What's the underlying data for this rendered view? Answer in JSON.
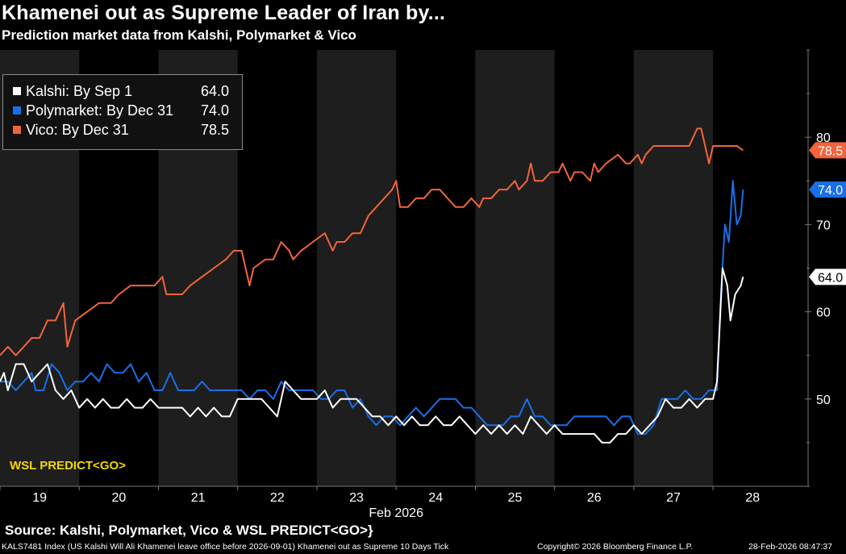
{
  "title": "Khamenei out as Supreme Leader of Iran by...",
  "subtitle": "Prediction market data from Kalshi, Polymarket & Vico",
  "source": "Source: Kalshi, Polymarket, Vico & WSL PREDICT<GO>}",
  "footer": {
    "left": "KALS7481 Index (US Kalshi Will Ali Khamenei leave office before 2026-09-01) Khamenei out as Supreme 10 Days Tick",
    "copyright": "Copyright© 2026 Bloomberg Finance L.P.",
    "timestamp": "28-Feb-2026 08:47:37"
  },
  "watermark": "WSL PREDICT<GO>",
  "colors": {
    "kalshi": "#ffffff",
    "polymarket": "#1a6fe8",
    "vico": "#f2643c",
    "shade": "#1e1e1e",
    "axis": "#777777"
  },
  "legend": [
    {
      "label": "Kalshi: By Sep 1",
      "value": "64.0",
      "color": "#ffffff"
    },
    {
      "label": "Polymarket: By Dec 31",
      "value": "74.0",
      "color": "#1a6fe8"
    },
    {
      "label": "Vico: By Dec 31",
      "value": "78.5",
      "color": "#f2643c"
    }
  ],
  "chart_data": {
    "type": "line",
    "title": "Khamenei out as Supreme Leader of Iran by...",
    "xlabel": "Feb 2026",
    "ylabel": "",
    "x_ticks": [
      "19",
      "20",
      "21",
      "22",
      "23",
      "24",
      "25",
      "26",
      "27",
      "28"
    ],
    "x_range": [
      18.5,
      28.7
    ],
    "ylim": [
      40,
      90
    ],
    "y_ticks": [
      50,
      60,
      70,
      80
    ],
    "grid": false,
    "legend_position": "top-left",
    "last_value_tags": [
      {
        "series": "Vico: By Dec 31",
        "value": "78.5"
      },
      {
        "series": "Polymarket: By Dec 31",
        "value": "74.0"
      },
      {
        "series": "Kalshi: By Sep 1",
        "value": "64.0"
      }
    ],
    "series": [
      {
        "name": "Vico: By Dec 31",
        "color": "#f2643c",
        "points": [
          [
            18.5,
            55
          ],
          [
            18.6,
            56
          ],
          [
            18.7,
            55
          ],
          [
            18.8,
            56
          ],
          [
            18.9,
            57
          ],
          [
            19.0,
            57
          ],
          [
            19.1,
            59
          ],
          [
            19.2,
            59
          ],
          [
            19.3,
            61
          ],
          [
            19.35,
            56
          ],
          [
            19.45,
            59
          ],
          [
            19.6,
            60
          ],
          [
            19.75,
            61
          ],
          [
            19.9,
            61
          ],
          [
            20.0,
            62
          ],
          [
            20.15,
            63
          ],
          [
            20.3,
            63
          ],
          [
            20.45,
            63
          ],
          [
            20.55,
            64
          ],
          [
            20.6,
            62
          ],
          [
            20.8,
            62
          ],
          [
            20.9,
            63
          ],
          [
            21.05,
            64
          ],
          [
            21.2,
            65
          ],
          [
            21.35,
            66
          ],
          [
            21.45,
            67
          ],
          [
            21.55,
            67
          ],
          [
            21.65,
            63
          ],
          [
            21.7,
            65
          ],
          [
            21.85,
            66
          ],
          [
            21.95,
            66
          ],
          [
            22.05,
            68
          ],
          [
            22.15,
            67
          ],
          [
            22.2,
            66
          ],
          [
            22.3,
            67
          ],
          [
            22.45,
            68
          ],
          [
            22.6,
            69
          ],
          [
            22.7,
            67
          ],
          [
            22.75,
            68
          ],
          [
            22.85,
            68
          ],
          [
            22.95,
            69
          ],
          [
            23.05,
            69
          ],
          [
            23.15,
            71
          ],
          [
            23.25,
            72
          ],
          [
            23.35,
            73
          ],
          [
            23.45,
            74
          ],
          [
            23.5,
            75
          ],
          [
            23.55,
            72
          ],
          [
            23.65,
            72
          ],
          [
            23.75,
            73
          ],
          [
            23.85,
            73
          ],
          [
            23.95,
            74
          ],
          [
            24.05,
            74
          ],
          [
            24.15,
            73
          ],
          [
            24.25,
            72
          ],
          [
            24.35,
            72
          ],
          [
            24.45,
            73
          ],
          [
            24.55,
            72
          ],
          [
            24.6,
            73
          ],
          [
            24.7,
            73
          ],
          [
            24.8,
            74
          ],
          [
            24.9,
            74
          ],
          [
            25.0,
            75
          ],
          [
            25.05,
            74
          ],
          [
            25.15,
            75
          ],
          [
            25.2,
            77
          ],
          [
            25.25,
            75
          ],
          [
            25.35,
            75
          ],
          [
            25.45,
            76
          ],
          [
            25.55,
            76
          ],
          [
            25.6,
            77
          ],
          [
            25.7,
            75
          ],
          [
            25.75,
            76
          ],
          [
            25.85,
            76
          ],
          [
            25.95,
            75
          ],
          [
            26.0,
            77
          ],
          [
            26.05,
            76
          ],
          [
            26.15,
            77
          ],
          [
            26.3,
            78
          ],
          [
            26.4,
            77
          ],
          [
            26.45,
            77
          ],
          [
            26.55,
            78
          ],
          [
            26.6,
            77
          ],
          [
            26.65,
            78
          ],
          [
            26.75,
            79
          ],
          [
            26.9,
            79
          ],
          [
            27.05,
            79
          ],
          [
            27.2,
            79
          ],
          [
            27.3,
            81
          ],
          [
            27.35,
            81
          ],
          [
            27.4,
            79
          ],
          [
            27.45,
            77
          ],
          [
            27.5,
            79
          ],
          [
            27.6,
            79
          ],
          [
            27.7,
            79
          ],
          [
            27.8,
            79
          ],
          [
            27.88,
            78.5
          ]
        ]
      },
      {
        "name": "Polymarket: By Dec 31",
        "color": "#1a6fe8",
        "points": [
          [
            18.5,
            52
          ],
          [
            18.6,
            52
          ],
          [
            18.7,
            51
          ],
          [
            18.8,
            52
          ],
          [
            18.9,
            53
          ],
          [
            18.95,
            51
          ],
          [
            19.05,
            51
          ],
          [
            19.15,
            54
          ],
          [
            19.25,
            53
          ],
          [
            19.35,
            51
          ],
          [
            19.45,
            52
          ],
          [
            19.55,
            52
          ],
          [
            19.65,
            53
          ],
          [
            19.75,
            52
          ],
          [
            19.85,
            54
          ],
          [
            19.95,
            53
          ],
          [
            20.05,
            53
          ],
          [
            20.15,
            54
          ],
          [
            20.25,
            52
          ],
          [
            20.35,
            53
          ],
          [
            20.45,
            51
          ],
          [
            20.55,
            51
          ],
          [
            20.65,
            53
          ],
          [
            20.75,
            51
          ],
          [
            20.85,
            51
          ],
          [
            20.95,
            51
          ],
          [
            21.05,
            52
          ],
          [
            21.15,
            51
          ],
          [
            21.25,
            51
          ],
          [
            21.35,
            51
          ],
          [
            21.45,
            51
          ],
          [
            21.55,
            51
          ],
          [
            21.65,
            50
          ],
          [
            21.75,
            51
          ],
          [
            21.85,
            51
          ],
          [
            21.95,
            50
          ],
          [
            22.05,
            52
          ],
          [
            22.15,
            51
          ],
          [
            22.25,
            51
          ],
          [
            22.35,
            51
          ],
          [
            22.45,
            51
          ],
          [
            22.55,
            50
          ],
          [
            22.65,
            50
          ],
          [
            22.75,
            51
          ],
          [
            22.85,
            51
          ],
          [
            22.95,
            49
          ],
          [
            23.05,
            50
          ],
          [
            23.15,
            48
          ],
          [
            23.25,
            47
          ],
          [
            23.35,
            48
          ],
          [
            23.45,
            48
          ],
          [
            23.55,
            47
          ],
          [
            23.65,
            48
          ],
          [
            23.75,
            49
          ],
          [
            23.85,
            48
          ],
          [
            23.95,
            49
          ],
          [
            24.05,
            50
          ],
          [
            24.15,
            50
          ],
          [
            24.25,
            50
          ],
          [
            24.35,
            49
          ],
          [
            24.45,
            49
          ],
          [
            24.55,
            48
          ],
          [
            24.65,
            47
          ],
          [
            24.75,
            47
          ],
          [
            24.85,
            47
          ],
          [
            24.95,
            48
          ],
          [
            25.05,
            48
          ],
          [
            25.15,
            50
          ],
          [
            25.25,
            48
          ],
          [
            25.35,
            48
          ],
          [
            25.45,
            47
          ],
          [
            25.55,
            47
          ],
          [
            25.65,
            47
          ],
          [
            25.75,
            48
          ],
          [
            25.85,
            48
          ],
          [
            25.95,
            48
          ],
          [
            26.05,
            48
          ],
          [
            26.15,
            48
          ],
          [
            26.25,
            47
          ],
          [
            26.35,
            48
          ],
          [
            26.45,
            48
          ],
          [
            26.55,
            46
          ],
          [
            26.65,
            46
          ],
          [
            26.75,
            47
          ],
          [
            26.85,
            50
          ],
          [
            26.95,
            50
          ],
          [
            27.05,
            50
          ],
          [
            27.15,
            51
          ],
          [
            27.25,
            50
          ],
          [
            27.35,
            50
          ],
          [
            27.45,
            51
          ],
          [
            27.55,
            51
          ],
          [
            27.6,
            62
          ],
          [
            27.65,
            70
          ],
          [
            27.7,
            68
          ],
          [
            27.75,
            75
          ],
          [
            27.8,
            70
          ],
          [
            27.85,
            71
          ],
          [
            27.88,
            74
          ]
        ]
      },
      {
        "name": "Kalshi: By Sep 1",
        "color": "#ffffff",
        "points": [
          [
            18.5,
            52
          ],
          [
            18.55,
            53
          ],
          [
            18.6,
            51
          ],
          [
            18.7,
            54
          ],
          [
            18.8,
            54
          ],
          [
            18.9,
            52
          ],
          [
            19.0,
            53
          ],
          [
            19.1,
            54
          ],
          [
            19.2,
            51
          ],
          [
            19.3,
            50
          ],
          [
            19.4,
            51
          ],
          [
            19.5,
            49
          ],
          [
            19.6,
            50
          ],
          [
            19.7,
            49
          ],
          [
            19.8,
            50
          ],
          [
            19.9,
            49
          ],
          [
            20.0,
            49
          ],
          [
            20.1,
            50
          ],
          [
            20.2,
            49
          ],
          [
            20.3,
            49
          ],
          [
            20.4,
            50
          ],
          [
            20.5,
            49
          ],
          [
            20.6,
            49
          ],
          [
            20.7,
            49
          ],
          [
            20.8,
            49
          ],
          [
            20.9,
            48
          ],
          [
            21.0,
            49
          ],
          [
            21.1,
            48
          ],
          [
            21.2,
            49
          ],
          [
            21.3,
            48
          ],
          [
            21.4,
            48
          ],
          [
            21.5,
            50
          ],
          [
            21.6,
            50
          ],
          [
            21.7,
            50
          ],
          [
            21.8,
            50
          ],
          [
            21.9,
            49
          ],
          [
            22.0,
            48
          ],
          [
            22.1,
            52
          ],
          [
            22.2,
            51
          ],
          [
            22.3,
            50
          ],
          [
            22.4,
            50
          ],
          [
            22.5,
            50
          ],
          [
            22.6,
            51
          ],
          [
            22.7,
            49
          ],
          [
            22.8,
            50
          ],
          [
            22.9,
            50
          ],
          [
            23.0,
            50
          ],
          [
            23.1,
            49
          ],
          [
            23.2,
            48
          ],
          [
            23.3,
            48
          ],
          [
            23.4,
            47
          ],
          [
            23.5,
            48
          ],
          [
            23.6,
            47
          ],
          [
            23.7,
            48
          ],
          [
            23.8,
            47
          ],
          [
            23.9,
            47
          ],
          [
            24.0,
            48
          ],
          [
            24.1,
            47
          ],
          [
            24.2,
            47
          ],
          [
            24.3,
            48
          ],
          [
            24.4,
            47
          ],
          [
            24.5,
            46
          ],
          [
            24.6,
            47
          ],
          [
            24.7,
            46
          ],
          [
            24.8,
            47
          ],
          [
            24.9,
            46
          ],
          [
            25.0,
            47
          ],
          [
            25.1,
            46
          ],
          [
            25.2,
            48
          ],
          [
            25.3,
            47
          ],
          [
            25.4,
            46
          ],
          [
            25.5,
            47
          ],
          [
            25.6,
            46
          ],
          [
            25.7,
            46
          ],
          [
            25.8,
            46
          ],
          [
            25.9,
            46
          ],
          [
            26.0,
            46
          ],
          [
            26.1,
            45
          ],
          [
            26.2,
            45
          ],
          [
            26.3,
            46
          ],
          [
            26.4,
            46
          ],
          [
            26.5,
            47
          ],
          [
            26.6,
            46
          ],
          [
            26.7,
            47
          ],
          [
            26.8,
            48
          ],
          [
            26.9,
            50
          ],
          [
            27.0,
            49
          ],
          [
            27.1,
            49
          ],
          [
            27.2,
            50
          ],
          [
            27.3,
            49
          ],
          [
            27.4,
            50
          ],
          [
            27.5,
            50
          ],
          [
            27.55,
            52
          ],
          [
            27.62,
            65
          ],
          [
            27.68,
            63
          ],
          [
            27.72,
            59
          ],
          [
            27.78,
            62
          ],
          [
            27.85,
            63
          ],
          [
            27.88,
            64
          ]
        ]
      }
    ]
  }
}
